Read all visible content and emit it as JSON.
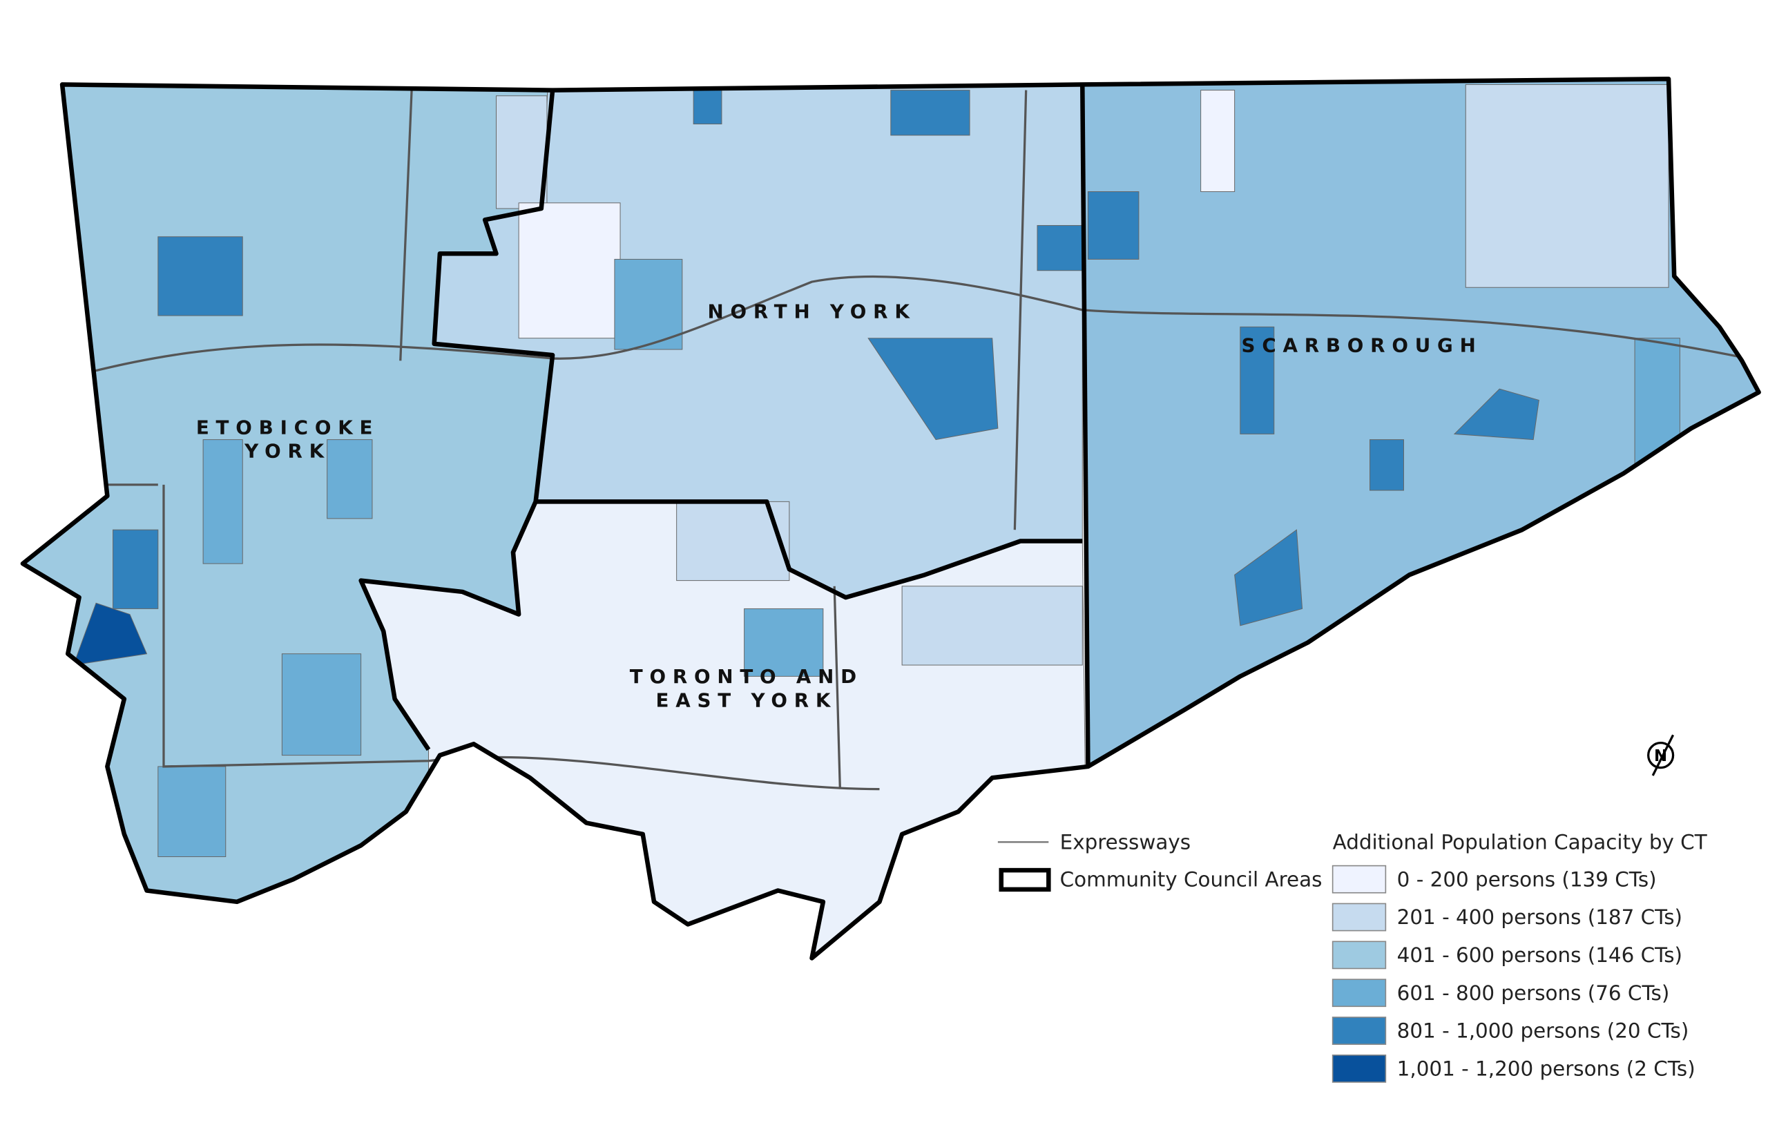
{
  "map": {
    "regions": [
      {
        "lines": [
          "ETOBICOKE",
          "YORK"
        ]
      },
      {
        "lines": [
          "NORTH YORK"
        ]
      },
      {
        "lines": [
          "SCARBOROUGH"
        ]
      },
      {
        "lines": [
          "TORONTO AND",
          "EAST YORK"
        ]
      }
    ],
    "north_arrow": "N"
  },
  "legend": {
    "expressways": "Expressways",
    "council_areas": "Community Council Areas",
    "title": "Additional Population Capacity by CT",
    "classes": [
      {
        "label": "0 - 200 persons (139 CTs)",
        "color": "#eff3ff"
      },
      {
        "label": "201 - 400 persons (187 CTs)",
        "color": "#c6dbef"
      },
      {
        "label": "401 - 600 persons (146 CTs)",
        "color": "#9ecae1"
      },
      {
        "label": "601 - 800 persons (76 CTs)",
        "color": "#6baed6"
      },
      {
        "label": "801 - 1,000 persons (20 CTs)",
        "color": "#3182bd"
      },
      {
        "label": "1,001 - 1,200 persons (2 CTs)",
        "color": "#08519c"
      }
    ]
  }
}
